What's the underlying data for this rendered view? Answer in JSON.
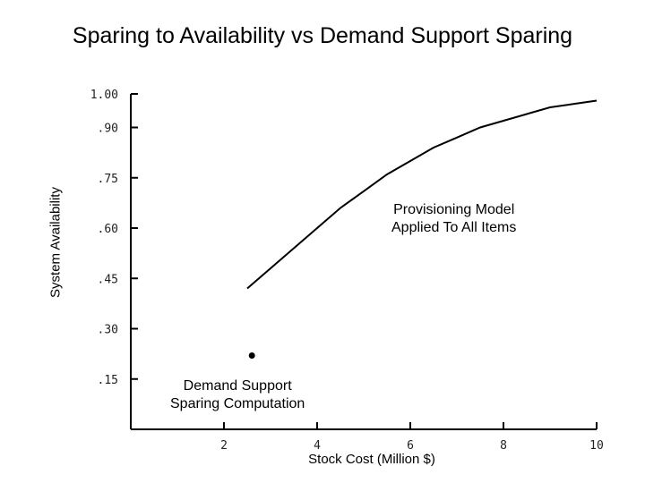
{
  "chart_data": {
    "type": "line",
    "title": "Sparing to Availability vs Demand Support Sparing",
    "xlabel": "Stock Cost (Million $)",
    "ylabel": "System Availability",
    "xlim": [
      0,
      10
    ],
    "ylim": [
      0,
      1.0
    ],
    "x_ticks": [
      2,
      4,
      6,
      8,
      10
    ],
    "x_tick_labels": [
      "2",
      "4",
      "6",
      "8",
      "10"
    ],
    "y_ticks": [
      0.15,
      0.3,
      0.45,
      0.6,
      0.75,
      0.9,
      1.0
    ],
    "y_tick_labels": [
      ".15",
      ".30",
      ".45",
      ".60",
      ".75",
      ".90",
      "1.00"
    ],
    "grid": false,
    "series": [
      {
        "x": [
          2.5,
          3.0,
          3.5,
          4.0,
          4.5,
          5.0,
          5.5,
          6.0,
          6.5,
          7.0,
          7.5,
          8.0,
          8.5,
          9.0,
          9.5,
          10.0
        ],
        "y": [
          0.42,
          0.48,
          0.54,
          0.6,
          0.66,
          0.71,
          0.76,
          0.8,
          0.84,
          0.87,
          0.9,
          0.92,
          0.94,
          0.96,
          0.97,
          0.98
        ]
      },
      {
        "type": "scatter",
        "x": [
          2.6
        ],
        "y": [
          0.22
        ]
      }
    ],
    "annotations": [
      {
        "text_lines": [
          "Provisioning Model",
          "Applied To All Items"
        ]
      },
      {
        "text_lines": [
          "Demand Support",
          "Sparing Computation"
        ]
      }
    ]
  }
}
